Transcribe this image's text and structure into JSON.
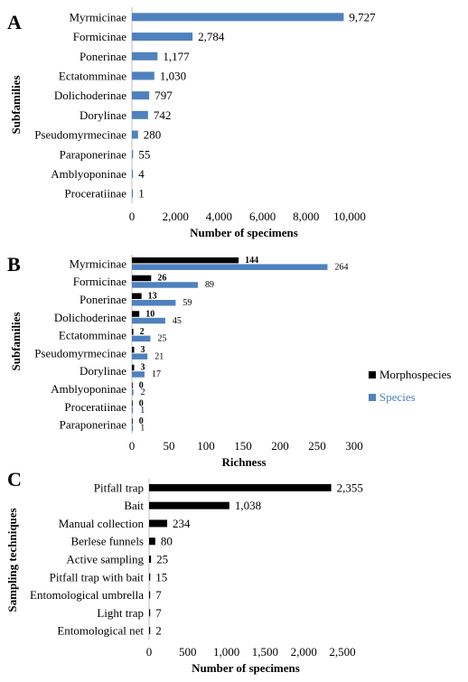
{
  "chart_data": [
    {
      "panel": "A",
      "type": "bar",
      "orientation": "horizontal",
      "categories": [
        "Myrmicinae",
        "Formicinae",
        "Ponerinae",
        "Ectatomminae",
        "Dolichoderinae",
        "Dorylinae",
        "Pseudomyrmecinae",
        "Paraponerinae",
        "Amblyoponinae",
        "Proceratiinae"
      ],
      "values": [
        9727,
        2784,
        1177,
        1030,
        797,
        742,
        280,
        55,
        4,
        1
      ],
      "value_labels": [
        "9,727",
        "2,784",
        "1,177",
        "1,030",
        "797",
        "742",
        "280",
        "55",
        "4",
        "1"
      ],
      "xlabel": "Number of specimens",
      "ylabel": "Subfamilies",
      "xlim": [
        0,
        10000
      ],
      "xticks": [
        0,
        2000,
        4000,
        6000,
        8000,
        10000
      ],
      "xtick_labels": [
        "0",
        "2,000",
        "4,000",
        "6,000",
        "8,000",
        "10,000"
      ],
      "color": "#4f81bd",
      "grid": false,
      "legend": "none"
    },
    {
      "panel": "B",
      "type": "bar",
      "orientation": "horizontal",
      "categories": [
        "Myrmicinae",
        "Formicinae",
        "Ponerinae",
        "Dolichoderinae",
        "Ectatomminae",
        "Pseudomyrmecinae",
        "Dorylinae",
        "Amblyoponinae",
        "Proceratiinae",
        "Paraponerinae"
      ],
      "series": [
        {
          "name": "Morphospecies",
          "color": "#000000",
          "values": [
            144,
            26,
            13,
            10,
            2,
            3,
            3,
            0,
            0,
            0
          ]
        },
        {
          "name": "Species",
          "color": "#4f81bd",
          "values": [
            264,
            89,
            59,
            45,
            25,
            21,
            17,
            2,
            1,
            1
          ]
        }
      ],
      "xlabel": "Richness",
      "ylabel": "Subfamilies",
      "xlim": [
        0,
        300
      ],
      "xticks": [
        0,
        50,
        100,
        150,
        200,
        250,
        300
      ],
      "xtick_labels": [
        "0",
        "50",
        "100",
        "150",
        "200",
        "250",
        "300"
      ],
      "grid": false,
      "legend": "right"
    },
    {
      "panel": "C",
      "type": "bar",
      "orientation": "horizontal",
      "categories": [
        "Pitfall trap",
        "Bait",
        "Manual collection",
        "Berlese funnels",
        "Active sampling",
        "Pitfall trap with bait",
        "Entomological umbrella",
        "Light trap",
        "Entomological net"
      ],
      "values": [
        2355,
        1038,
        234,
        80,
        25,
        15,
        7,
        7,
        2
      ],
      "value_labels": [
        "2,355",
        "1,038",
        "234",
        "80",
        "25",
        "15",
        "7",
        "7",
        "2"
      ],
      "xlabel": "Number of specimens",
      "ylabel": "Sampling techniques",
      "xlim": [
        0,
        2500
      ],
      "xticks": [
        0,
        500,
        1000,
        1500,
        2000,
        2500
      ],
      "xtick_labels": [
        "0",
        "500",
        "1,000",
        "1,500",
        "2,000",
        "2,500"
      ],
      "color": "#000000",
      "grid": false,
      "legend": "none"
    }
  ]
}
